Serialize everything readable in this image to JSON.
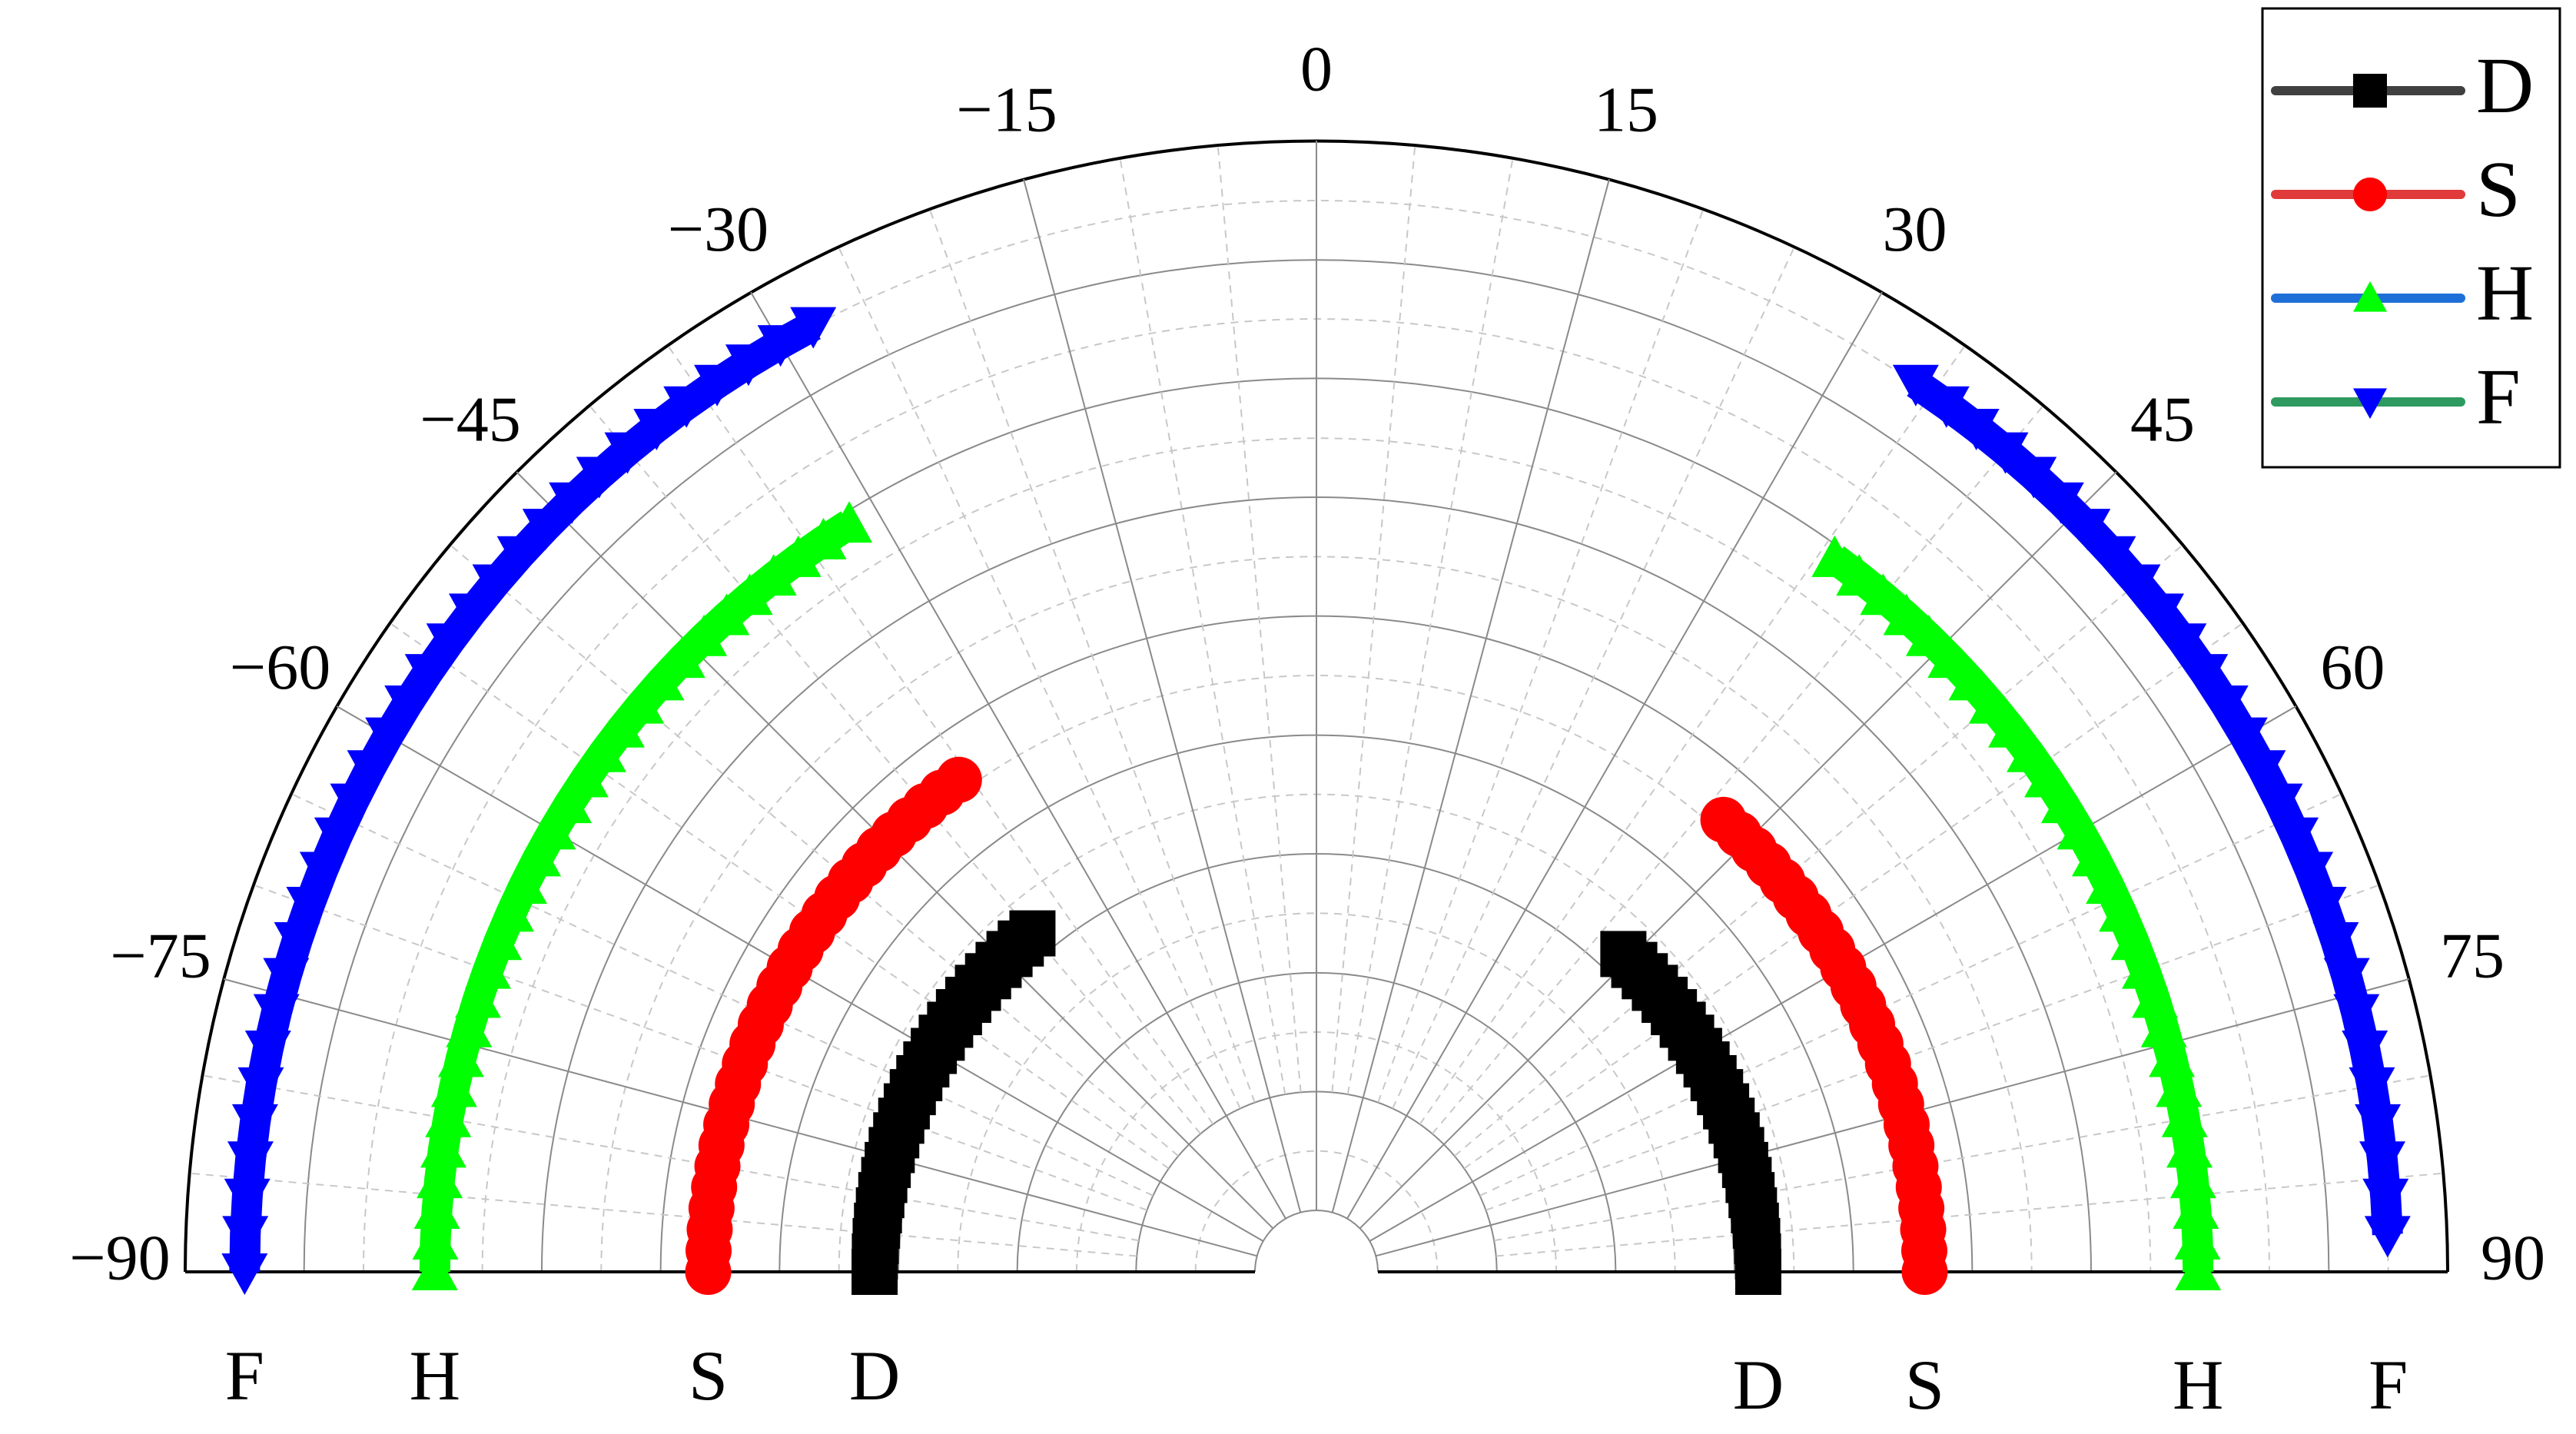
{
  "chart_data": {
    "type": "polar-half",
    "thetalim": [
      -90,
      90
    ],
    "thetaticks": [
      {
        "value": -90,
        "label": "−90"
      },
      {
        "value": -75,
        "label": "−75"
      },
      {
        "value": -60,
        "label": "−60"
      },
      {
        "value": -45,
        "label": "−45"
      },
      {
        "value": -30,
        "label": "−30"
      },
      {
        "value": -15,
        "label": "−15"
      },
      0,
      15,
      30,
      45,
      60,
      75,
      90
    ],
    "rlim": [
      0,
      9
    ],
    "rticks": [
      0,
      1,
      2,
      3,
      4,
      5,
      6,
      7,
      8,
      9
    ],
    "grid": true,
    "legend": "upper right",
    "series": [
      {
        "name": "D",
        "color": "#000000",
        "line_color": "#404040",
        "marker": "square",
        "theta": [
          -90,
          -88,
          -86,
          -84,
          -82,
          -80,
          -78,
          -76,
          -74,
          -72,
          -70,
          -68,
          -66,
          -64,
          -62,
          -60,
          -58,
          -56,
          -54,
          -52,
          -50,
          -48,
          -46,
          -44,
          -42,
          -40,
          null,
          44,
          46,
          48,
          50,
          52,
          54,
          56,
          58,
          60,
          62,
          64,
          66,
          68,
          70,
          72,
          74,
          76,
          78,
          80,
          82,
          84,
          86,
          88,
          90
        ],
        "r": [
          3.2,
          3.2,
          3.2,
          3.2,
          3.2,
          3.2,
          3.2,
          3.2,
          3.2,
          3.2,
          3.2,
          3.2,
          3.2,
          3.2,
          3.2,
          3.2,
          3.2,
          3.2,
          3.2,
          3.2,
          3.2,
          3.2,
          3.2,
          3.2,
          3.2,
          3.2,
          null,
          3.2,
          3.2,
          3.2,
          3.2,
          3.2,
          3.2,
          3.2,
          3.2,
          3.2,
          3.2,
          3.2,
          3.2,
          3.2,
          3.2,
          3.2,
          3.2,
          3.2,
          3.2,
          3.2,
          3.2,
          3.2,
          3.2,
          3.2,
          3.2
        ]
      },
      {
        "name": "S",
        "color": "#ff0000",
        "line_color": "#e03a3a",
        "marker": "circle",
        "theta": [
          -90,
          -88,
          -86,
          -84,
          -82,
          -80,
          -78,
          -76,
          -74,
          -72,
          -70,
          -68,
          -66,
          -64,
          -62,
          -60,
          -58,
          -56,
          -54,
          -52,
          -50,
          -48,
          -46,
          -44,
          -42,
          -40,
          -38,
          -36,
          null,
          42,
          44,
          46,
          48,
          50,
          52,
          54,
          56,
          58,
          60,
          62,
          64,
          66,
          68,
          70,
          72,
          74,
          76,
          78,
          80,
          82,
          84,
          86,
          88,
          90
        ],
        "r": [
          4.6,
          4.6,
          4.6,
          4.6,
          4.6,
          4.6,
          4.6,
          4.6,
          4.6,
          4.6,
          4.6,
          4.6,
          4.6,
          4.6,
          4.6,
          4.6,
          4.6,
          4.6,
          4.6,
          4.6,
          4.6,
          4.6,
          4.6,
          4.6,
          4.6,
          4.6,
          4.6,
          4.6,
          null,
          4.6,
          4.6,
          4.6,
          4.6,
          4.6,
          4.6,
          4.6,
          4.6,
          4.6,
          4.6,
          4.6,
          4.6,
          4.6,
          4.6,
          4.6,
          4.6,
          4.6,
          4.6,
          4.6,
          4.6,
          4.6,
          4.6,
          4.6,
          4.6,
          4.6
        ]
      },
      {
        "name": "H",
        "color": "#00ff00",
        "line_color": "#1f6fd8",
        "marker": "triangle-up",
        "theta": [
          -90,
          -88,
          -86,
          -84,
          -82,
          -80,
          -78,
          -76,
          -74,
          -72,
          -70,
          -68,
          -66,
          -64,
          -62,
          -60,
          -58,
          -56,
          -54,
          -52,
          -50,
          -48,
          -46,
          -44,
          -42,
          -40,
          -38,
          -36,
          -34,
          -32,
          null,
          36,
          38,
          40,
          42,
          44,
          46,
          48,
          50,
          52,
          54,
          56,
          58,
          60,
          62,
          64,
          66,
          68,
          70,
          72,
          74,
          76,
          78,
          80,
          82,
          84,
          86,
          88,
          90
        ],
        "r": [
          6.9,
          6.9,
          6.9,
          6.9,
          6.9,
          6.9,
          6.9,
          6.9,
          6.9,
          6.9,
          6.9,
          6.9,
          6.9,
          6.9,
          6.9,
          6.9,
          6.9,
          6.9,
          6.9,
          6.9,
          6.9,
          6.9,
          6.9,
          6.9,
          6.9,
          6.9,
          6.9,
          6.9,
          6.9,
          6.9,
          null,
          6.9,
          6.9,
          6.9,
          6.9,
          6.9,
          6.9,
          6.9,
          6.9,
          6.9,
          6.9,
          6.9,
          6.9,
          6.9,
          6.9,
          6.9,
          6.9,
          6.9,
          6.9,
          6.9,
          6.9,
          6.9,
          6.9,
          6.9,
          6.9,
          6.9,
          6.9,
          6.9,
          6.9
        ]
      },
      {
        "name": "F",
        "color": "#0000ff",
        "line_color": "#2e9a60",
        "marker": "triangle-down",
        "theta": [
          -90,
          -88,
          -86,
          -84,
          -82,
          -80,
          -78,
          -76,
          -74,
          -72,
          -70,
          -68,
          -66,
          -64,
          -62,
          -60,
          -58,
          -56,
          -54,
          -52,
          -50,
          -48,
          -46,
          -44,
          -42,
          -40,
          -38,
          -36,
          -34,
          -32,
          -30,
          -28,
          null,
          34,
          36,
          38,
          40,
          42,
          44,
          46,
          48,
          50,
          52,
          54,
          56,
          58,
          60,
          62,
          64,
          66,
          68,
          70,
          72,
          74,
          76,
          78,
          80,
          82,
          84,
          86,
          88,
          90
        ],
        "r": [
          8.5,
          8.5,
          8.5,
          8.5,
          8.5,
          8.5,
          8.5,
          8.5,
          8.5,
          8.5,
          8.5,
          8.5,
          8.5,
          8.5,
          8.5,
          8.5,
          8.5,
          8.5,
          8.5,
          8.5,
          8.5,
          8.5,
          8.5,
          8.5,
          8.5,
          8.5,
          8.5,
          8.5,
          8.5,
          8.5,
          8.5,
          8.5,
          null,
          8.5,
          8.5,
          8.5,
          8.5,
          8.5,
          8.5,
          8.5,
          8.5,
          8.5,
          8.5,
          8.5,
          8.5,
          8.5,
          8.5,
          8.5,
          8.5,
          8.5,
          8.5,
          8.5,
          8.5,
          8.5,
          8.5,
          8.5,
          8.5,
          8.5,
          8.5,
          8.5,
          8.5
        ]
      }
    ]
  }
}
